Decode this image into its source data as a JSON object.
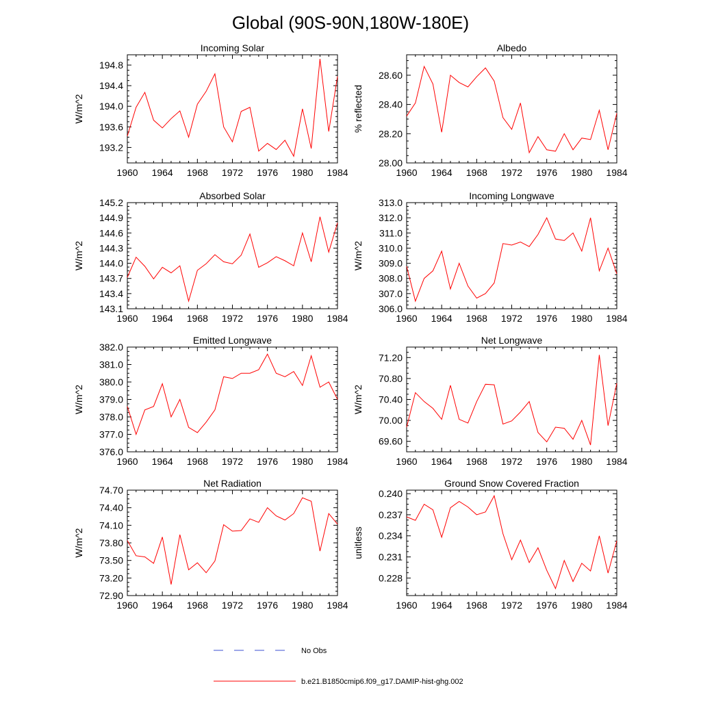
{
  "figure_title": "Global (90S-90N,180W-180E)",
  "legend": {
    "obs_label": "No Obs",
    "obs_color": "#3b4fd1",
    "model_label": "b.e21.B1850cmip6.f09_g17.DAMIP-hist-ghg.002",
    "model_color": "#ff0000"
  },
  "chart_data": [
    {
      "type": "line",
      "title": "Incoming Solar",
      "ylabel": "W/m^2",
      "xlim": [
        1960,
        1984
      ],
      "ylim": [
        192.9,
        195.0
      ],
      "xticks": [
        "1960",
        "1964",
        "1968",
        "1972",
        "1976",
        "1980",
        "1984"
      ],
      "yticks": [
        "193.2",
        "193.6",
        "194.0",
        "194.4",
        "194.8"
      ],
      "x": [
        1960,
        1961,
        1962,
        1963,
        1964,
        1965,
        1966,
        1967,
        1968,
        1969,
        1970,
        1971,
        1972,
        1973,
        1974,
        1975,
        1976,
        1977,
        1978,
        1979,
        1980,
        1981,
        1982,
        1983,
        1984
      ],
      "series": [
        {
          "values": [
            193.42,
            193.98,
            194.27,
            193.73,
            193.58,
            193.76,
            193.91,
            193.4,
            194.04,
            194.29,
            194.63,
            193.6,
            193.31,
            193.9,
            193.98,
            193.13,
            193.28,
            193.16,
            193.34,
            193.03,
            193.95,
            193.18,
            194.92,
            193.51,
            194.58
          ]
        }
      ]
    },
    {
      "type": "line",
      "title": "Albedo",
      "ylabel": "% reflected",
      "xlim": [
        1960,
        1984
      ],
      "ylim": [
        28.0,
        28.74
      ],
      "xticks": [
        "1960",
        "1964",
        "1968",
        "1972",
        "1976",
        "1980",
        "1984"
      ],
      "yticks": [
        "28.00",
        "28.20",
        "28.40",
        "28.60"
      ],
      "x": [
        1960,
        1961,
        1962,
        1963,
        1964,
        1965,
        1966,
        1967,
        1968,
        1969,
        1970,
        1971,
        1972,
        1973,
        1974,
        1975,
        1976,
        1977,
        1978,
        1979,
        1980,
        1981,
        1982,
        1983,
        1984
      ],
      "series": [
        {
          "values": [
            28.32,
            28.41,
            28.66,
            28.54,
            28.21,
            28.6,
            28.55,
            28.52,
            28.59,
            28.65,
            28.56,
            28.31,
            28.23,
            28.41,
            28.07,
            28.18,
            28.09,
            28.08,
            28.2,
            28.09,
            28.17,
            28.16,
            28.36,
            28.09,
            28.34
          ]
        }
      ]
    },
    {
      "type": "line",
      "title": "Absorbed Solar",
      "ylabel": "W/m^2",
      "xlim": [
        1960,
        1984
      ],
      "ylim": [
        143.1,
        145.2
      ],
      "xticks": [
        "1960",
        "1964",
        "1968",
        "1972",
        "1976",
        "1980",
        "1984"
      ],
      "yticks": [
        "143.1",
        "143.4",
        "143.7",
        "144.0",
        "144.3",
        "144.6",
        "144.9",
        "145.2"
      ],
      "x": [
        1960,
        1961,
        1962,
        1963,
        1964,
        1965,
        1966,
        1967,
        1968,
        1969,
        1970,
        1971,
        1972,
        1973,
        1974,
        1975,
        1976,
        1977,
        1978,
        1979,
        1980,
        1981,
        1982,
        1983,
        1984
      ],
      "series": [
        {
          "values": [
            143.72,
            144.12,
            143.94,
            143.69,
            143.92,
            143.81,
            143.95,
            143.25,
            143.86,
            143.99,
            144.17,
            144.03,
            143.99,
            144.16,
            144.58,
            143.92,
            144.01,
            144.13,
            144.05,
            143.95,
            144.6,
            144.03,
            144.92,
            144.22,
            144.8
          ]
        }
      ]
    },
    {
      "type": "line",
      "title": "Incoming Longwave",
      "ylabel": "W/m^2",
      "xlim": [
        1960,
        1984
      ],
      "ylim": [
        306.0,
        313.0
      ],
      "xticks": [
        "1960",
        "1964",
        "1968",
        "1972",
        "1976",
        "1980",
        "1984"
      ],
      "yticks": [
        "306.0",
        "307.0",
        "308.0",
        "309.0",
        "310.0",
        "311.0",
        "312.0",
        "313.0"
      ],
      "x": [
        1960,
        1961,
        1962,
        1963,
        1964,
        1965,
        1966,
        1967,
        1968,
        1969,
        1970,
        1971,
        1972,
        1973,
        1974,
        1975,
        1976,
        1977,
        1978,
        1979,
        1980,
        1981,
        1982,
        1983,
        1984
      ],
      "series": [
        {
          "values": [
            308.8,
            306.5,
            308.0,
            308.5,
            309.8,
            307.3,
            309.0,
            307.5,
            306.7,
            307.0,
            307.7,
            310.3,
            310.2,
            310.4,
            310.1,
            310.9,
            312.0,
            310.6,
            310.5,
            311.0,
            309.8,
            312.0,
            308.5,
            310.0,
            308.3
          ]
        }
      ]
    },
    {
      "type": "line",
      "title": "Emitted Longwave",
      "ylabel": "W/m^2",
      "xlim": [
        1960,
        1984
      ],
      "ylim": [
        376.0,
        382.0
      ],
      "xticks": [
        "1960",
        "1964",
        "1968",
        "1972",
        "1976",
        "1980",
        "1984"
      ],
      "yticks": [
        "376.0",
        "377.0",
        "378.0",
        "379.0",
        "380.0",
        "381.0",
        "382.0"
      ],
      "x": [
        1960,
        1961,
        1962,
        1963,
        1964,
        1965,
        1966,
        1967,
        1968,
        1969,
        1970,
        1971,
        1972,
        1973,
        1974,
        1975,
        1976,
        1977,
        1978,
        1979,
        1980,
        1981,
        1982,
        1983,
        1984
      ],
      "series": [
        {
          "values": [
            378.6,
            377.0,
            378.4,
            378.6,
            379.9,
            378.0,
            379.0,
            377.4,
            377.1,
            377.7,
            378.4,
            380.3,
            380.2,
            380.5,
            380.5,
            380.7,
            381.6,
            380.5,
            380.3,
            380.6,
            379.8,
            381.5,
            379.7,
            380.0,
            379.0
          ]
        }
      ]
    },
    {
      "type": "line",
      "title": "Net Longwave",
      "ylabel": "W/m^2",
      "xlim": [
        1960,
        1984
      ],
      "ylim": [
        69.4,
        71.4
      ],
      "xticks": [
        "1960",
        "1964",
        "1968",
        "1972",
        "1976",
        "1980",
        "1984"
      ],
      "yticks": [
        "69.60",
        "70.00",
        "70.40",
        "70.80",
        "71.20"
      ],
      "x": [
        1960,
        1961,
        1962,
        1963,
        1964,
        1965,
        1966,
        1967,
        1968,
        1969,
        1970,
        1971,
        1972,
        1973,
        1974,
        1975,
        1976,
        1977,
        1978,
        1979,
        1980,
        1981,
        1982,
        1983,
        1984
      ],
      "series": [
        {
          "values": [
            69.87,
            70.53,
            70.36,
            70.23,
            70.02,
            70.67,
            70.02,
            69.95,
            70.36,
            70.69,
            70.68,
            69.93,
            69.99,
            70.16,
            70.36,
            69.77,
            69.59,
            69.87,
            69.85,
            69.64,
            70.0,
            69.53,
            71.25,
            69.9,
            70.71
          ]
        }
      ]
    },
    {
      "type": "line",
      "title": "Net Radiation",
      "ylabel": "W/m^2",
      "xlim": [
        1960,
        1984
      ],
      "ylim": [
        72.9,
        74.7
      ],
      "xticks": [
        "1960",
        "1964",
        "1968",
        "1972",
        "1976",
        "1980",
        "1984"
      ],
      "yticks": [
        "72.90",
        "73.20",
        "73.50",
        "73.80",
        "74.10",
        "74.40",
        "74.70"
      ],
      "x": [
        1960,
        1961,
        1962,
        1963,
        1964,
        1965,
        1966,
        1967,
        1968,
        1969,
        1970,
        1971,
        1972,
        1973,
        1974,
        1975,
        1976,
        1977,
        1978,
        1979,
        1980,
        1981,
        1982,
        1983,
        1984
      ],
      "series": [
        {
          "values": [
            73.84,
            73.58,
            73.56,
            73.45,
            73.9,
            73.09,
            73.94,
            73.34,
            73.46,
            73.29,
            73.49,
            74.11,
            74.0,
            74.01,
            74.21,
            74.15,
            74.4,
            74.26,
            74.19,
            74.3,
            74.57,
            74.51,
            73.66,
            74.3,
            74.12
          ]
        }
      ]
    },
    {
      "type": "line",
      "title": "Ground Snow Covered Fraction",
      "ylabel": "unitless",
      "xlim": [
        1960,
        1984
      ],
      "ylim": [
        0.2255,
        0.2405
      ],
      "xticks": [
        "1960",
        "1964",
        "1968",
        "1972",
        "1976",
        "1980",
        "1984"
      ],
      "yticks": [
        "0.228",
        "0.231",
        "0.234",
        "0.237",
        "0.240"
      ],
      "x": [
        1960,
        1961,
        1962,
        1963,
        1964,
        1965,
        1966,
        1967,
        1968,
        1969,
        1970,
        1971,
        1972,
        1973,
        1974,
        1975,
        1976,
        1977,
        1978,
        1979,
        1980,
        1981,
        1982,
        1983,
        1984
      ],
      "series": [
        {
          "values": [
            0.2367,
            0.2362,
            0.2385,
            0.2377,
            0.2338,
            0.238,
            0.2389,
            0.2381,
            0.237,
            0.2374,
            0.2397,
            0.2343,
            0.2306,
            0.2334,
            0.2302,
            0.2323,
            0.2291,
            0.2265,
            0.2305,
            0.2275,
            0.2301,
            0.229,
            0.234,
            0.2287,
            0.2333
          ]
        }
      ]
    }
  ]
}
